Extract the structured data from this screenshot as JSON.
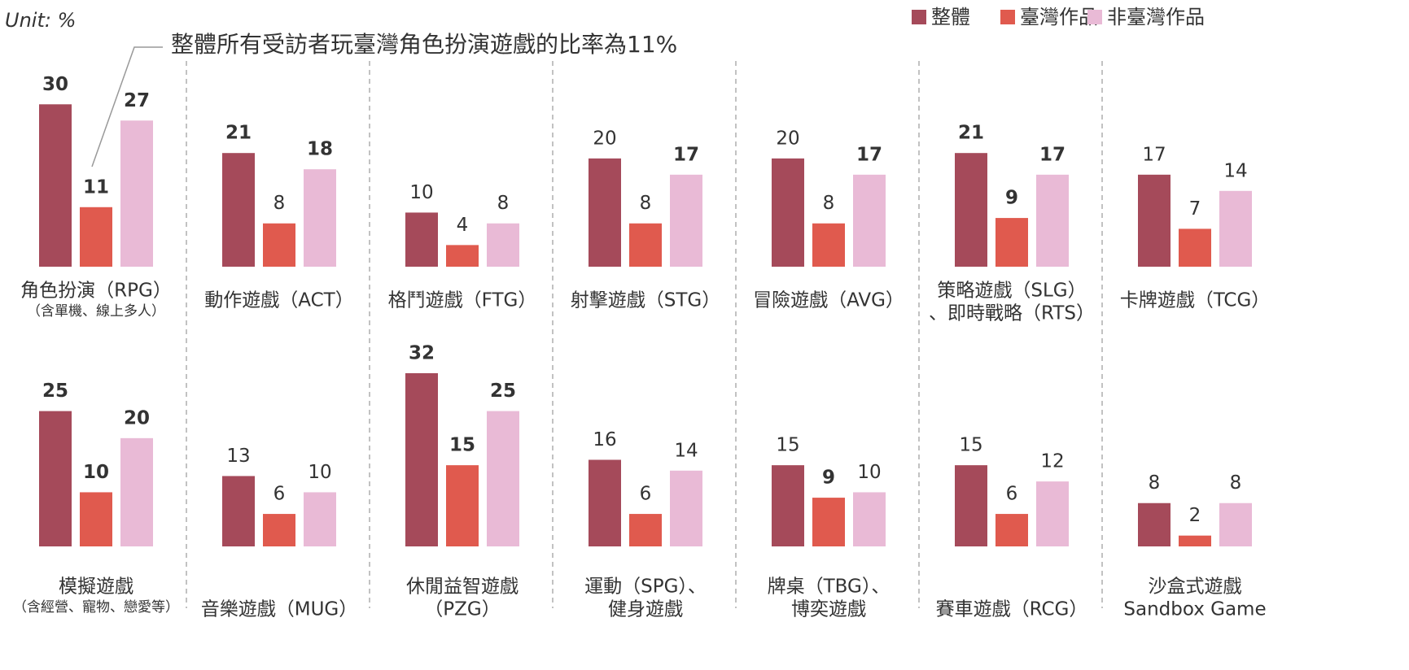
{
  "chart_data": {
    "type": "bar",
    "unit": "Unit: %",
    "annotation": "整體所有受訪者玩臺灣角色扮演遊戲的比率為11%",
    "ylim": [
      0,
      35
    ],
    "legend": "top-right",
    "categories": [
      [
        "角色扮演（RPG）",
        "（含單機、線上多人）"
      ],
      [
        "動作遊戲（ACT）"
      ],
      [
        "格鬥遊戲（FTG）"
      ],
      [
        "射擊遊戲（STG）"
      ],
      [
        "冒險遊戲（AVG）"
      ],
      [
        "策略遊戲（SLG）",
        "、即時戰略（RTS）"
      ],
      [
        "卡牌遊戲（TCG）"
      ],
      [
        "模擬遊戲",
        "（含經營、寵物、戀愛等）"
      ],
      [
        "音樂遊戲（MUG）"
      ],
      [
        "休閒益智遊戲",
        "（PZG）"
      ],
      [
        "運動（SPG）、",
        "健身遊戲"
      ],
      [
        "牌桌（TBG）、",
        "博奕遊戲"
      ],
      [
        "賽車遊戲（RCG）"
      ],
      [
        "沙盒式遊戲",
        "Sandbox Game"
      ]
    ],
    "series": [
      {
        "name": "整體",
        "color": "#a54a5a",
        "values": [
          30,
          21,
          10,
          20,
          20,
          21,
          17,
          25,
          13,
          32,
          16,
          15,
          15,
          8
        ],
        "bold_labels": [
          true,
          true,
          false,
          false,
          false,
          true,
          false,
          true,
          false,
          true,
          false,
          false,
          false,
          false
        ]
      },
      {
        "name": "臺灣作品",
        "color": "#e05a4e",
        "values": [
          11,
          8,
          4,
          8,
          8,
          9,
          7,
          10,
          6,
          15,
          6,
          9,
          6,
          2
        ],
        "bold_labels": [
          true,
          false,
          false,
          false,
          false,
          true,
          false,
          true,
          false,
          true,
          false,
          true,
          false,
          false
        ]
      },
      {
        "name": "非臺灣作品",
        "color": "#e9bad6",
        "values": [
          27,
          18,
          8,
          17,
          17,
          17,
          14,
          20,
          10,
          25,
          14,
          10,
          12,
          8
        ],
        "bold_labels": [
          true,
          true,
          false,
          true,
          true,
          true,
          false,
          true,
          false,
          true,
          false,
          false,
          false,
          false
        ]
      }
    ]
  }
}
